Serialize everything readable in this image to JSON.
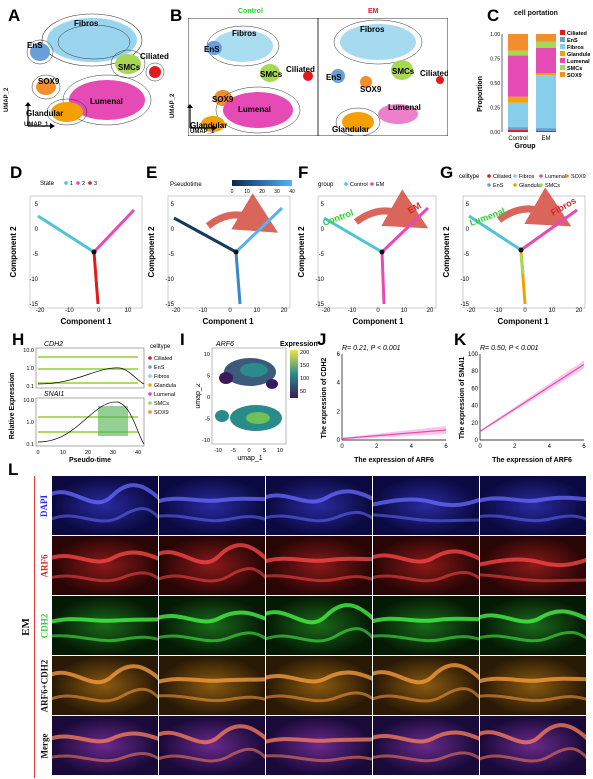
{
  "panels": {
    "A": "A",
    "B": "B",
    "C": "C",
    "D": "D",
    "E": "E",
    "F": "F",
    "G": "G",
    "H": "H",
    "I": "I",
    "J": "J",
    "K": "K",
    "L": "L"
  },
  "umap_A": {
    "clusters": [
      "Fibros",
      "EnS",
      "Ciliated",
      "SMCs",
      "SOX9",
      "Lumenal",
      "Glandular"
    ],
    "axis_x": "UMAP_1",
    "axis_y": "UMAP_2"
  },
  "umap_B": {
    "title_left": "Control",
    "title_right": "EM",
    "left_clusters": [
      "Fibros",
      "EnS",
      "SMCs",
      "Ciliated",
      "SOX9",
      "Lumenal",
      "Glandular"
    ],
    "right_clusters": [
      "Fibros",
      "EnS",
      "SMCs",
      "Ciliated",
      "SOX9",
      "Lumenal",
      "Glandular"
    ],
    "axis_x": "UMAP_1",
    "axis_y": "UMAP_2",
    "title_left_color": "#2fd12f",
    "title_right_color": "#e0202a"
  },
  "chart_C": {
    "title": "cell portation",
    "ylabel": "Proportion",
    "xlabel": "Group",
    "yticks": [
      "0.00",
      "0.25",
      "0.50",
      "0.75",
      "1.00"
    ],
    "categories": [
      "Control",
      "EM"
    ],
    "legend": [
      {
        "name": "Ciliated",
        "color": "#e31a1c"
      },
      {
        "name": "EnS",
        "color": "#6a9ed8"
      },
      {
        "name": "Fibros",
        "color": "#87ceeb"
      },
      {
        "name": "Glandular",
        "color": "#f4a000"
      },
      {
        "name": "Lumenal",
        "color": "#e64ab4"
      },
      {
        "name": "SMCs",
        "color": "#a6d854"
      },
      {
        "name": "SOX9",
        "color": "#f28e2b"
      }
    ]
  },
  "chart_data": [
    {
      "type": "bar",
      "title": "cell portation",
      "xlabel": "Group",
      "ylabel": "Proportion",
      "categories": [
        "Control",
        "EM"
      ],
      "ylim": [
        0,
        1
      ],
      "series": [
        {
          "name": "Ciliated",
          "values": [
            0.02,
            0.01
          ]
        },
        {
          "name": "EnS",
          "values": [
            0.03,
            0.03
          ]
        },
        {
          "name": "Fibros",
          "values": [
            0.25,
            0.54
          ]
        },
        {
          "name": "Glandular",
          "values": [
            0.06,
            0.02
          ]
        },
        {
          "name": "Lumenal",
          "values": [
            0.42,
            0.26
          ]
        },
        {
          "name": "SMCs",
          "values": [
            0.05,
            0.06
          ]
        },
        {
          "name": "SOX9",
          "values": [
            0.17,
            0.08
          ]
        }
      ]
    },
    {
      "type": "scatter",
      "title": "",
      "xlabel": "The expression of ARF6",
      "ylabel": "The expression of CDH2",
      "annotation": "R= 0.21, P < 0.001",
      "xlim": [
        0,
        6
      ],
      "ylim": [
        0,
        6
      ],
      "x": [
        0,
        6
      ],
      "y": [
        0.1,
        0.7
      ]
    },
    {
      "type": "scatter",
      "title": "",
      "xlabel": "The expression of ARF6",
      "ylabel": "The expression of SNAI1",
      "annotation": "R= 0.50, P < 0.001",
      "xlim": [
        0,
        6
      ],
      "ylim": [
        0,
        100
      ],
      "x": [
        0,
        6
      ],
      "y": [
        10,
        88
      ]
    }
  ],
  "traj_D": {
    "legend_title": "State",
    "legend_items": [
      "1",
      "2",
      "3"
    ],
    "legend_colors": [
      "#4fc3d9",
      "#e64ab4",
      "#e31a1c"
    ],
    "xlabel": "Component 1",
    "ylabel": "Component 2",
    "xticks": [
      "-20",
      "-10",
      "0",
      "10"
    ],
    "yticks": [
      "5",
      "0",
      "-5",
      "-10",
      "-15"
    ]
  },
  "traj_E": {
    "legend_title": "Pseudotime",
    "legend_ticks": [
      "0",
      "10",
      "20",
      "30",
      "40"
    ],
    "xlabel": "Component 1",
    "ylabel": "Component 2",
    "xticks": [
      "-20",
      "-10",
      "0",
      "10",
      "20"
    ],
    "yticks": [
      "5",
      "0",
      "-5",
      "-10",
      "-15"
    ]
  },
  "traj_F": {
    "legend_title": "group",
    "legend_items": [
      "Control",
      "EM"
    ],
    "legend_colors": [
      "#4fc3d9",
      "#e64ab4"
    ],
    "arrow_left": "Control",
    "arrow_right": "EM",
    "xlabel": "Component 1",
    "ylabel": "Component 2",
    "xticks": [
      "-20",
      "-10",
      "0",
      "10",
      "20"
    ],
    "yticks": [
      "5",
      "0",
      "-5",
      "-10",
      "-15"
    ]
  },
  "traj_G": {
    "legend_title": "celltype",
    "legend_items": [
      "Ciliated",
      "Fibros",
      "Lumenal",
      "SOX9",
      "EnS",
      "Glandular",
      "SMCs"
    ],
    "legend_colors": [
      "#e31a1c",
      "#87ceeb",
      "#e64ab4",
      "#f28e2b",
      "#6a9ed8",
      "#f4a000",
      "#a6d854"
    ],
    "arrow_left": "Lumenal",
    "arrow_right": "Fibros",
    "xlabel": "Component 1",
    "ylabel": "Component 2",
    "xticks": [
      "-20",
      "-10",
      "0",
      "10",
      "20"
    ],
    "yticks": [
      "5",
      "0",
      "-5",
      "-10",
      "-15"
    ]
  },
  "panel_H": {
    "gene1": "CDH2",
    "gene2": "SNAI1",
    "ylabel": "Relative Expression",
    "xlabel": "Pseudo-time",
    "yticks_top": [
      "10.0",
      "1.0",
      "0.1"
    ],
    "yticks_bottom": [
      "10.0",
      "1.0",
      "0.1"
    ],
    "xticks": [
      "0",
      "10",
      "20",
      "30",
      "40"
    ],
    "legend_title": "celltype",
    "legend_items": [
      "Ciliated",
      "EnS",
      "Fibros",
      "Glandular",
      "Lumenal",
      "SMCs",
      "SOX9"
    ]
  },
  "panel_I": {
    "gene": "ARF6",
    "legend_title": "Expression",
    "legend_ticks": [
      "200",
      "150",
      "100",
      "50"
    ],
    "xlabel": "umap_1",
    "ylabel": "umap_2",
    "xticks": [
      "-10",
      "-5",
      "0",
      "5",
      "10"
    ],
    "yticks": [
      "10",
      "5",
      "0",
      "-5",
      "-10"
    ]
  },
  "panel_J": {
    "annotation": "R= 0.21, P < 0.001",
    "xlabel": "The expression of ARF6",
    "ylabel": "The expression of CDH2",
    "xticks": [
      "0",
      "2",
      "4",
      "6"
    ],
    "yticks": [
      "0",
      "2",
      "4",
      "6"
    ]
  },
  "panel_K": {
    "annotation": "R= 0.50, P < 0.001",
    "xlabel": "The expression of ARF6",
    "ylabel": "The expression of SNAI1",
    "xticks": [
      "0",
      "2",
      "4",
      "6"
    ],
    "yticks": [
      "0",
      "20",
      "40",
      "60",
      "80",
      "100"
    ]
  },
  "panel_L": {
    "group_label": "EM",
    "rows": [
      {
        "label": "DAPI",
        "color": "#2a2af0"
      },
      {
        "label": "ARF6",
        "color": "#e02020"
      },
      {
        "label": "CDH2",
        "color": "#2fd12f"
      },
      {
        "label": "ARF6+CDH2",
        "color": "#111111"
      },
      {
        "label": "Merge",
        "color": "#111111"
      }
    ]
  }
}
